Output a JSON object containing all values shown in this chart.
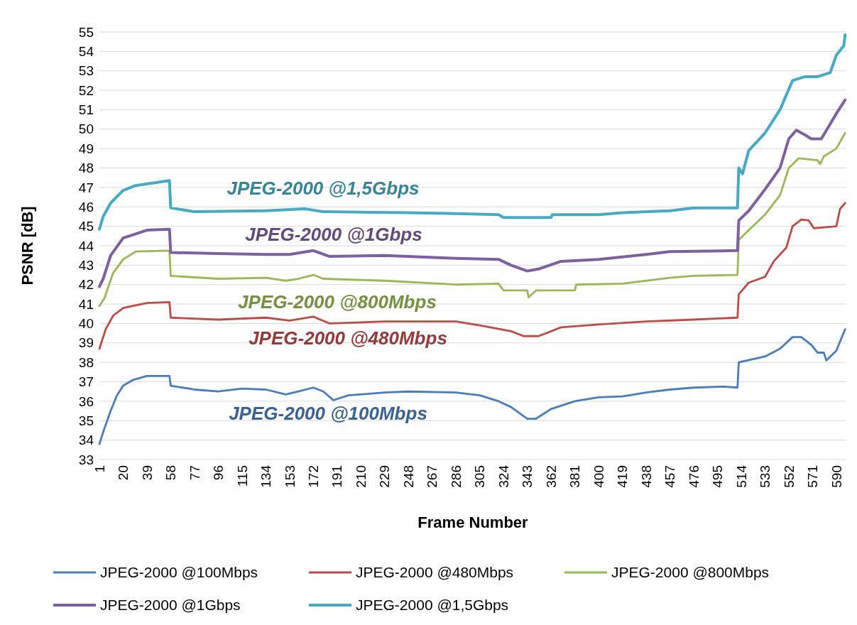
{
  "chart_data": {
    "type": "line",
    "xlabel": "Frame Number",
    "ylabel": "PSNR [dB]",
    "xlim": [
      1,
      598
    ],
    "xticks": [
      1,
      20,
      39,
      58,
      77,
      96,
      115,
      134,
      153,
      172,
      191,
      210,
      229,
      248,
      267,
      286,
      305,
      324,
      343,
      362,
      381,
      400,
      419,
      438,
      457,
      476,
      495,
      514,
      533,
      552,
      571,
      590
    ],
    "ylim": [
      33,
      55
    ],
    "yticks": [
      33,
      34,
      35,
      36,
      37,
      38,
      39,
      40,
      41,
      42,
      43,
      44,
      45,
      46,
      47,
      48,
      49,
      50,
      51,
      52,
      53,
      54,
      55
    ],
    "grid": "y",
    "legend": "bottom",
    "line_style": "solid",
    "marker": "none",
    "series": [
      {
        "name": "JPEG-2000 @100Mbps",
        "color": "#4a7ebb",
        "x": [
          1,
          5,
          10,
          15,
          20,
          28,
          39,
          50,
          57,
          58,
          77,
          96,
          115,
          134,
          150,
          160,
          172,
          180,
          188,
          200,
          229,
          248,
          286,
          305,
          320,
          330,
          343,
          350,
          362,
          381,
          400,
          419,
          438,
          457,
          476,
          500,
          511,
          512,
          533,
          545,
          555,
          562,
          570,
          575,
          580,
          582,
          590,
          597
        ],
        "values": [
          33.8,
          34.6,
          35.5,
          36.3,
          36.8,
          37.1,
          37.3,
          37.3,
          37.3,
          36.8,
          36.6,
          36.5,
          36.65,
          36.6,
          36.35,
          36.5,
          36.7,
          36.5,
          36.05,
          36.3,
          36.45,
          36.5,
          36.45,
          36.3,
          36.0,
          35.7,
          35.1,
          35.1,
          35.6,
          36.0,
          36.2,
          36.25,
          36.45,
          36.6,
          36.7,
          36.75,
          36.7,
          38.0,
          38.3,
          38.7,
          39.3,
          39.3,
          38.9,
          38.5,
          38.5,
          38.1,
          38.6,
          39.7
        ]
      },
      {
        "name": "JPEG-2000 @480Mbps",
        "color": "#be4b48",
        "x": [
          1,
          6,
          12,
          20,
          39,
          57,
          58,
          96,
          134,
          153,
          172,
          185,
          229,
          286,
          305,
          330,
          340,
          352,
          370,
          400,
          438,
          476,
          511,
          512,
          520,
          533,
          540,
          550,
          555,
          562,
          568,
          572,
          590,
          593,
          597
        ],
        "values": [
          38.7,
          39.7,
          40.4,
          40.8,
          41.05,
          41.1,
          40.3,
          40.2,
          40.3,
          40.15,
          40.35,
          40.0,
          40.1,
          40.1,
          39.9,
          39.6,
          39.35,
          39.35,
          39.8,
          39.95,
          40.1,
          40.2,
          40.3,
          41.5,
          42.1,
          42.4,
          43.2,
          43.9,
          45.0,
          45.35,
          45.3,
          44.9,
          45.0,
          45.9,
          46.2
        ]
      },
      {
        "name": "JPEG-2000 @800Mbps",
        "color": "#98b954",
        "x": [
          1,
          5,
          12,
          20,
          30,
          57,
          58,
          96,
          134,
          150,
          160,
          172,
          180,
          229,
          286,
          320,
          324,
          343,
          344,
          350,
          381,
          382,
          419,
          457,
          476,
          511,
          512,
          520,
          533,
          545,
          552,
          560,
          575,
          577,
          580,
          590,
          597
        ],
        "values": [
          40.9,
          41.3,
          42.6,
          43.3,
          43.7,
          43.75,
          42.45,
          42.3,
          42.35,
          42.2,
          42.3,
          42.5,
          42.3,
          42.2,
          42.0,
          42.05,
          41.7,
          41.7,
          41.35,
          41.7,
          41.7,
          42.0,
          42.05,
          42.35,
          42.45,
          42.5,
          44.3,
          44.8,
          45.6,
          46.6,
          48.0,
          48.5,
          48.4,
          48.2,
          48.6,
          49.0,
          49.8
        ]
      },
      {
        "name": "JPEG-2000 @1Gbps",
        "color": "#7d60a0",
        "x": [
          1,
          4,
          10,
          20,
          39,
          57,
          58,
          96,
          134,
          153,
          172,
          185,
          229,
          286,
          320,
          330,
          343,
          352,
          370,
          400,
          438,
          457,
          511,
          512,
          520,
          533,
          545,
          552,
          558,
          565,
          570,
          578,
          590,
          597
        ],
        "values": [
          41.9,
          42.3,
          43.5,
          44.4,
          44.8,
          44.85,
          43.65,
          43.6,
          43.55,
          43.55,
          43.75,
          43.45,
          43.5,
          43.35,
          43.3,
          43.0,
          42.7,
          42.8,
          43.2,
          43.3,
          43.55,
          43.7,
          43.75,
          45.3,
          45.8,
          46.9,
          48.0,
          49.5,
          49.95,
          49.7,
          49.5,
          49.5,
          50.8,
          51.5
        ]
      },
      {
        "name": "JPEG-2000 @1,5Gbps",
        "color": "#46aac5",
        "x": [
          1,
          4,
          10,
          20,
          30,
          57,
          58,
          77,
          134,
          165,
          180,
          248,
          286,
          320,
          324,
          362,
          363,
          400,
          419,
          457,
          476,
          511,
          512,
          515,
          520,
          533,
          545,
          555,
          565,
          575,
          585,
          590,
          596,
          597
        ],
        "values": [
          44.85,
          45.5,
          46.2,
          46.85,
          47.1,
          47.35,
          45.95,
          45.75,
          45.8,
          45.9,
          45.75,
          45.7,
          45.65,
          45.6,
          45.45,
          45.45,
          45.6,
          45.6,
          45.7,
          45.8,
          45.95,
          45.95,
          48.0,
          47.7,
          48.9,
          49.8,
          51.0,
          52.5,
          52.7,
          52.7,
          52.9,
          53.8,
          54.3,
          54.85
        ]
      }
    ],
    "annotations": [
      "JPEG-2000 @100Mbps",
      "JPEG-2000 @480Mbps",
      "JPEG-2000 @800Mbps",
      "JPEG-2000 @1Gbps",
      "JPEG-2000 @1,5Gbps"
    ]
  }
}
